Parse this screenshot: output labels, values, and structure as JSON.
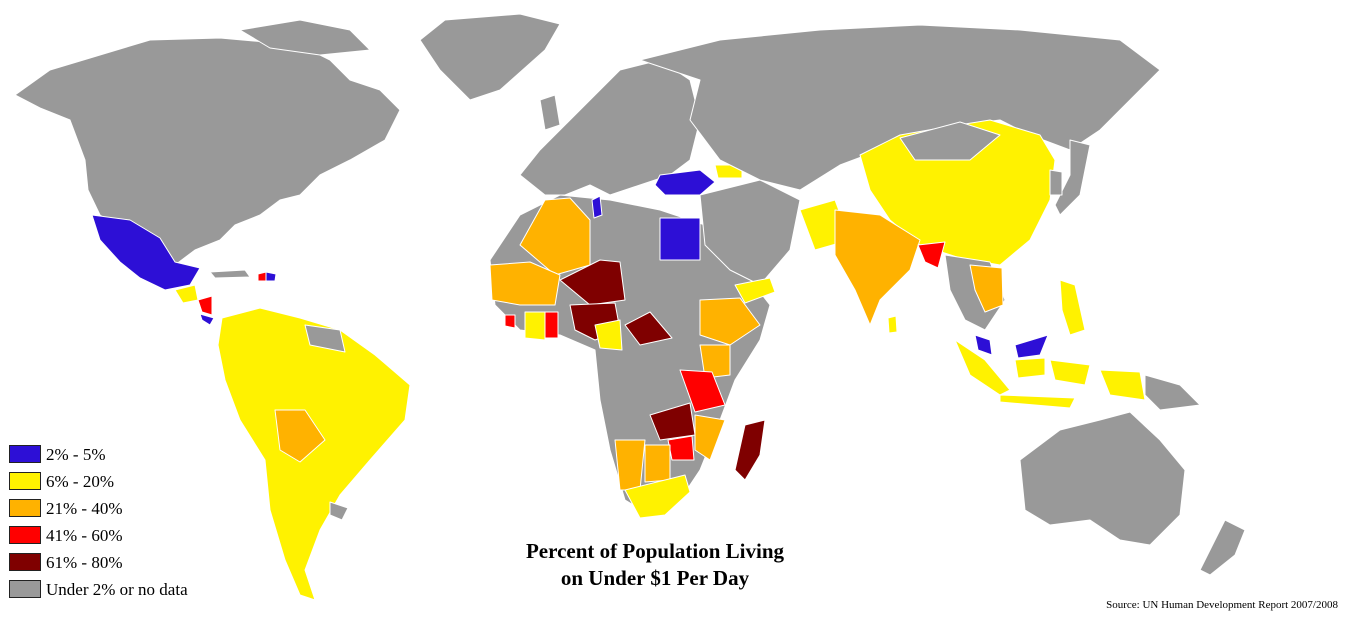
{
  "title": {
    "line1": "Percent of Population Living",
    "line2": "on Under $1 Per Day"
  },
  "source": "Source: UN Human Development Report 2007/2008",
  "colors": {
    "ocean": "#ffffff",
    "border": "#ffffff",
    "band_2_5": "#2d0fd6",
    "band_6_20": "#fff200",
    "band_21_40": "#ffb200",
    "band_41_60": "#ff0000",
    "band_61_80": "#7f0000",
    "no_data": "#999999"
  },
  "legend": [
    {
      "label": "2% - 5%",
      "color": "#2d0fd6"
    },
    {
      "label": "6% - 20%",
      "color": "#fff200"
    },
    {
      "label": "21% - 40%",
      "color": "#ffb200"
    },
    {
      "label": "41% - 60%",
      "color": "#ff0000"
    },
    {
      "label": "61% - 80%",
      "color": "#7f0000"
    },
    {
      "label": "Under 2% or no data",
      "color": "#999999"
    }
  ]
}
